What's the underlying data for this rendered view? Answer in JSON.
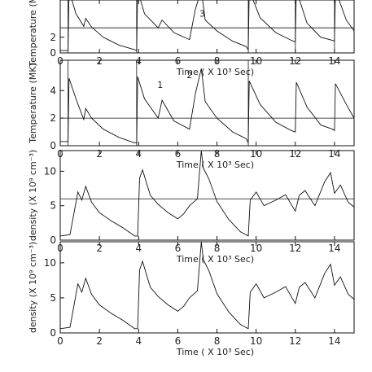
{
  "chart_data": [
    {
      "type": "line",
      "title": "",
      "xlabel": "Time ( X 10³ Sec)",
      "ylabel": "Temperature (MK)",
      "xlim": [
        0,
        15
      ],
      "ylim": [
        0,
        8
      ],
      "xticks": [
        "0",
        "2",
        "4",
        "6",
        "8",
        "10",
        "12",
        "14"
      ],
      "yticks": [
        "0",
        "2"
      ],
      "threshold_y": 3.2,
      "event_markers_x": [
        0.4,
        3.9,
        9.6,
        12.0,
        14.0
      ],
      "annotations": [
        {
          "text": "3",
          "x": 7.25,
          "y": 4.6
        }
      ],
      "series": [
        {
          "x": [
            0.0,
            0.4,
            0.45,
            0.8,
            1.2,
            1.3,
            1.6,
            2.2,
            3.0,
            3.8,
            3.9,
            3.95,
            4.3,
            5.0,
            5.2,
            5.8,
            6.6,
            6.9,
            7.2,
            7.4,
            8.0,
            8.8,
            9.5,
            9.6,
            9.65,
            10.2,
            11.0,
            11.8,
            12.0,
            12.05,
            12.6,
            13.3,
            13.9,
            14.0,
            14.05,
            14.6,
            15.0
          ],
          "y": [
            0.3,
            0.3,
            8.0,
            5.0,
            3.4,
            4.4,
            3.3,
            2.0,
            1.0,
            0.4,
            0.3,
            8.0,
            5.0,
            3.2,
            4.2,
            2.6,
            1.7,
            5.6,
            8.0,
            4.2,
            2.8,
            1.5,
            0.8,
            0.4,
            8.0,
            4.5,
            2.6,
            1.6,
            1.4,
            8.0,
            3.8,
            2.0,
            1.6,
            1.5,
            8.0,
            4.2,
            2.8
          ]
        }
      ]
    },
    {
      "type": "line",
      "title": "",
      "xlabel": "Time ( X 10³ Sec)",
      "ylabel": "Temperature (MK)",
      "xlim": [
        0,
        15
      ],
      "ylim": [
        0,
        6.2
      ],
      "xticks": [
        "0",
        "2",
        "4",
        "6",
        "8",
        "10",
        "12",
        "14"
      ],
      "yticks": [
        "0",
        "2",
        "4"
      ],
      "threshold_y": 2.0,
      "event_markers_x": [
        0.4,
        3.9,
        9.6
      ],
      "annotations": [
        {
          "text": "1",
          "x": 5.1,
          "y": 4.2
        },
        {
          "text": "2",
          "x": 6.6,
          "y": 4.9
        }
      ],
      "series": [
        {
          "x": [
            0.0,
            0.4,
            0.45,
            0.8,
            1.2,
            1.3,
            1.6,
            2.2,
            3.0,
            3.8,
            3.9,
            3.95,
            4.3,
            5.0,
            5.2,
            5.8,
            6.6,
            6.9,
            7.2,
            7.4,
            8.0,
            8.8,
            9.5,
            9.6,
            9.65,
            10.2,
            11.0,
            11.8,
            12.0,
            12.05,
            12.6,
            13.3,
            13.9,
            14.0,
            14.05,
            14.6,
            15.0
          ],
          "y": [
            0.3,
            0.3,
            4.9,
            3.4,
            1.9,
            2.7,
            2.0,
            1.2,
            0.6,
            0.2,
            0.2,
            5.0,
            3.4,
            2.0,
            3.3,
            1.8,
            1.2,
            3.8,
            5.6,
            3.2,
            2.0,
            1.0,
            0.5,
            0.2,
            4.7,
            3.0,
            1.7,
            1.1,
            1.0,
            4.6,
            2.8,
            1.5,
            1.2,
            1.1,
            4.5,
            3.0,
            2.0
          ]
        }
      ]
    },
    {
      "type": "line",
      "title": "",
      "xlabel": "Time ( X 10³ Sec)",
      "ylabel": "density (X 10⁹ cm⁻³)",
      "xlim": [
        0,
        15
      ],
      "ylim": [
        0,
        13
      ],
      "xticks": [
        "0",
        "2",
        "4",
        "6",
        "8",
        "10",
        "12",
        "14"
      ],
      "yticks": [
        "0",
        "5",
        "10"
      ],
      "threshold_y": 6.0,
      "event_markers_x": [],
      "annotations": [],
      "series": [
        {
          "x": [
            0.0,
            0.5,
            0.9,
            1.1,
            1.3,
            1.6,
            2.0,
            2.6,
            3.2,
            3.8,
            3.95,
            4.05,
            4.2,
            4.6,
            5.0,
            5.5,
            6.0,
            6.3,
            6.6,
            7.0,
            7.2,
            7.3,
            7.6,
            8.0,
            8.6,
            9.2,
            9.6,
            9.7,
            10.0,
            10.4,
            11.0,
            11.5,
            12.0,
            12.2,
            12.5,
            13.0,
            13.5,
            13.8,
            14.0,
            14.3,
            14.7,
            15.0
          ],
          "y": [
            0.6,
            0.8,
            7.0,
            5.8,
            7.8,
            5.5,
            4.0,
            2.8,
            1.8,
            0.6,
            0.6,
            9.0,
            10.2,
            6.5,
            5.2,
            4.0,
            3.1,
            3.8,
            5.0,
            6.0,
            13.0,
            10.5,
            8.8,
            5.6,
            3.0,
            1.2,
            0.6,
            5.8,
            7.0,
            5.0,
            5.8,
            6.6,
            4.2,
            6.5,
            7.2,
            5.0,
            8.5,
            9.8,
            6.8,
            8.0,
            5.5,
            4.8
          ]
        }
      ]
    },
    {
      "type": "line",
      "title": "",
      "xlabel": "Time ( X 10³ Sec)",
      "ylabel": "density (X 10⁹ cm⁻³)",
      "xlim": [
        0,
        15
      ],
      "ylim": [
        0,
        13
      ],
      "xticks": [
        "0",
        "2",
        "4",
        "6",
        "8",
        "10",
        "12",
        "14"
      ],
      "yticks": [
        "0",
        "5",
        "10"
      ],
      "threshold_y": null,
      "event_markers_x": [],
      "annotations": [],
      "series": [
        {
          "x": [
            0.0,
            0.5,
            0.9,
            1.1,
            1.3,
            1.6,
            2.0,
            2.6,
            3.2,
            3.8,
            3.95,
            4.05,
            4.2,
            4.6,
            5.0,
            5.5,
            6.0,
            6.3,
            6.6,
            7.0,
            7.2,
            7.3,
            7.6,
            8.0,
            8.6,
            9.2,
            9.6,
            9.7,
            10.0,
            10.4,
            11.0,
            11.5,
            12.0,
            12.2,
            12.5,
            13.0,
            13.5,
            13.8,
            14.0,
            14.3,
            14.7,
            15.0
          ],
          "y": [
            0.6,
            0.8,
            7.0,
            5.8,
            7.8,
            5.5,
            4.0,
            2.8,
            1.8,
            0.6,
            0.6,
            9.0,
            10.2,
            6.5,
            5.2,
            4.0,
            3.1,
            3.8,
            5.0,
            6.0,
            13.0,
            10.5,
            8.8,
            5.6,
            3.0,
            1.2,
            0.6,
            5.8,
            7.0,
            5.0,
            5.8,
            6.6,
            4.2,
            6.5,
            7.2,
            5.0,
            8.5,
            9.8,
            6.8,
            8.0,
            5.5,
            4.8
          ]
        }
      ]
    }
  ]
}
